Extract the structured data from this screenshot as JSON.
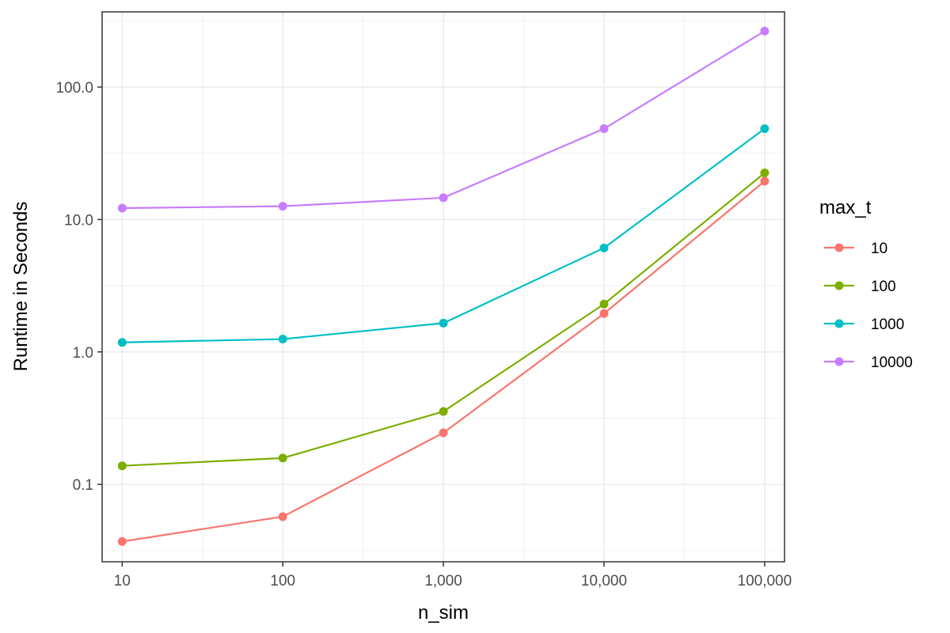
{
  "chart_data": {
    "type": "line",
    "x_scale": "log10",
    "y_scale": "log10",
    "x": [
      10,
      100,
      1000,
      10000,
      100000
    ],
    "x_tick_labels": [
      "10",
      "100",
      "1,000",
      "10,000",
      "100,000"
    ],
    "y_ticks": [
      0.1,
      1,
      10,
      100
    ],
    "y_tick_labels": [
      "0.1",
      "1.0",
      "10.0",
      "100.0"
    ],
    "xlim": [
      7.5,
      133000
    ],
    "ylim": [
      0.026,
      370
    ],
    "xlabel": "n_sim",
    "ylabel": "Runtime in Seconds",
    "legend_title": "max_t",
    "legend_position": "right",
    "grid": true,
    "series": [
      {
        "name": "10",
        "color": "#F8766D",
        "values": [
          0.037,
          0.057,
          0.245,
          1.95,
          19.5
        ]
      },
      {
        "name": "100",
        "color": "#7CAE00",
        "values": [
          0.138,
          0.158,
          0.355,
          2.3,
          22.5
        ]
      },
      {
        "name": "1000",
        "color": "#00BFC4",
        "values": [
          1.18,
          1.25,
          1.65,
          6.1,
          48.5
        ]
      },
      {
        "name": "10000",
        "color": "#C77CFF",
        "values": [
          12.2,
          12.6,
          14.6,
          48.5,
          265
        ]
      }
    ]
  }
}
